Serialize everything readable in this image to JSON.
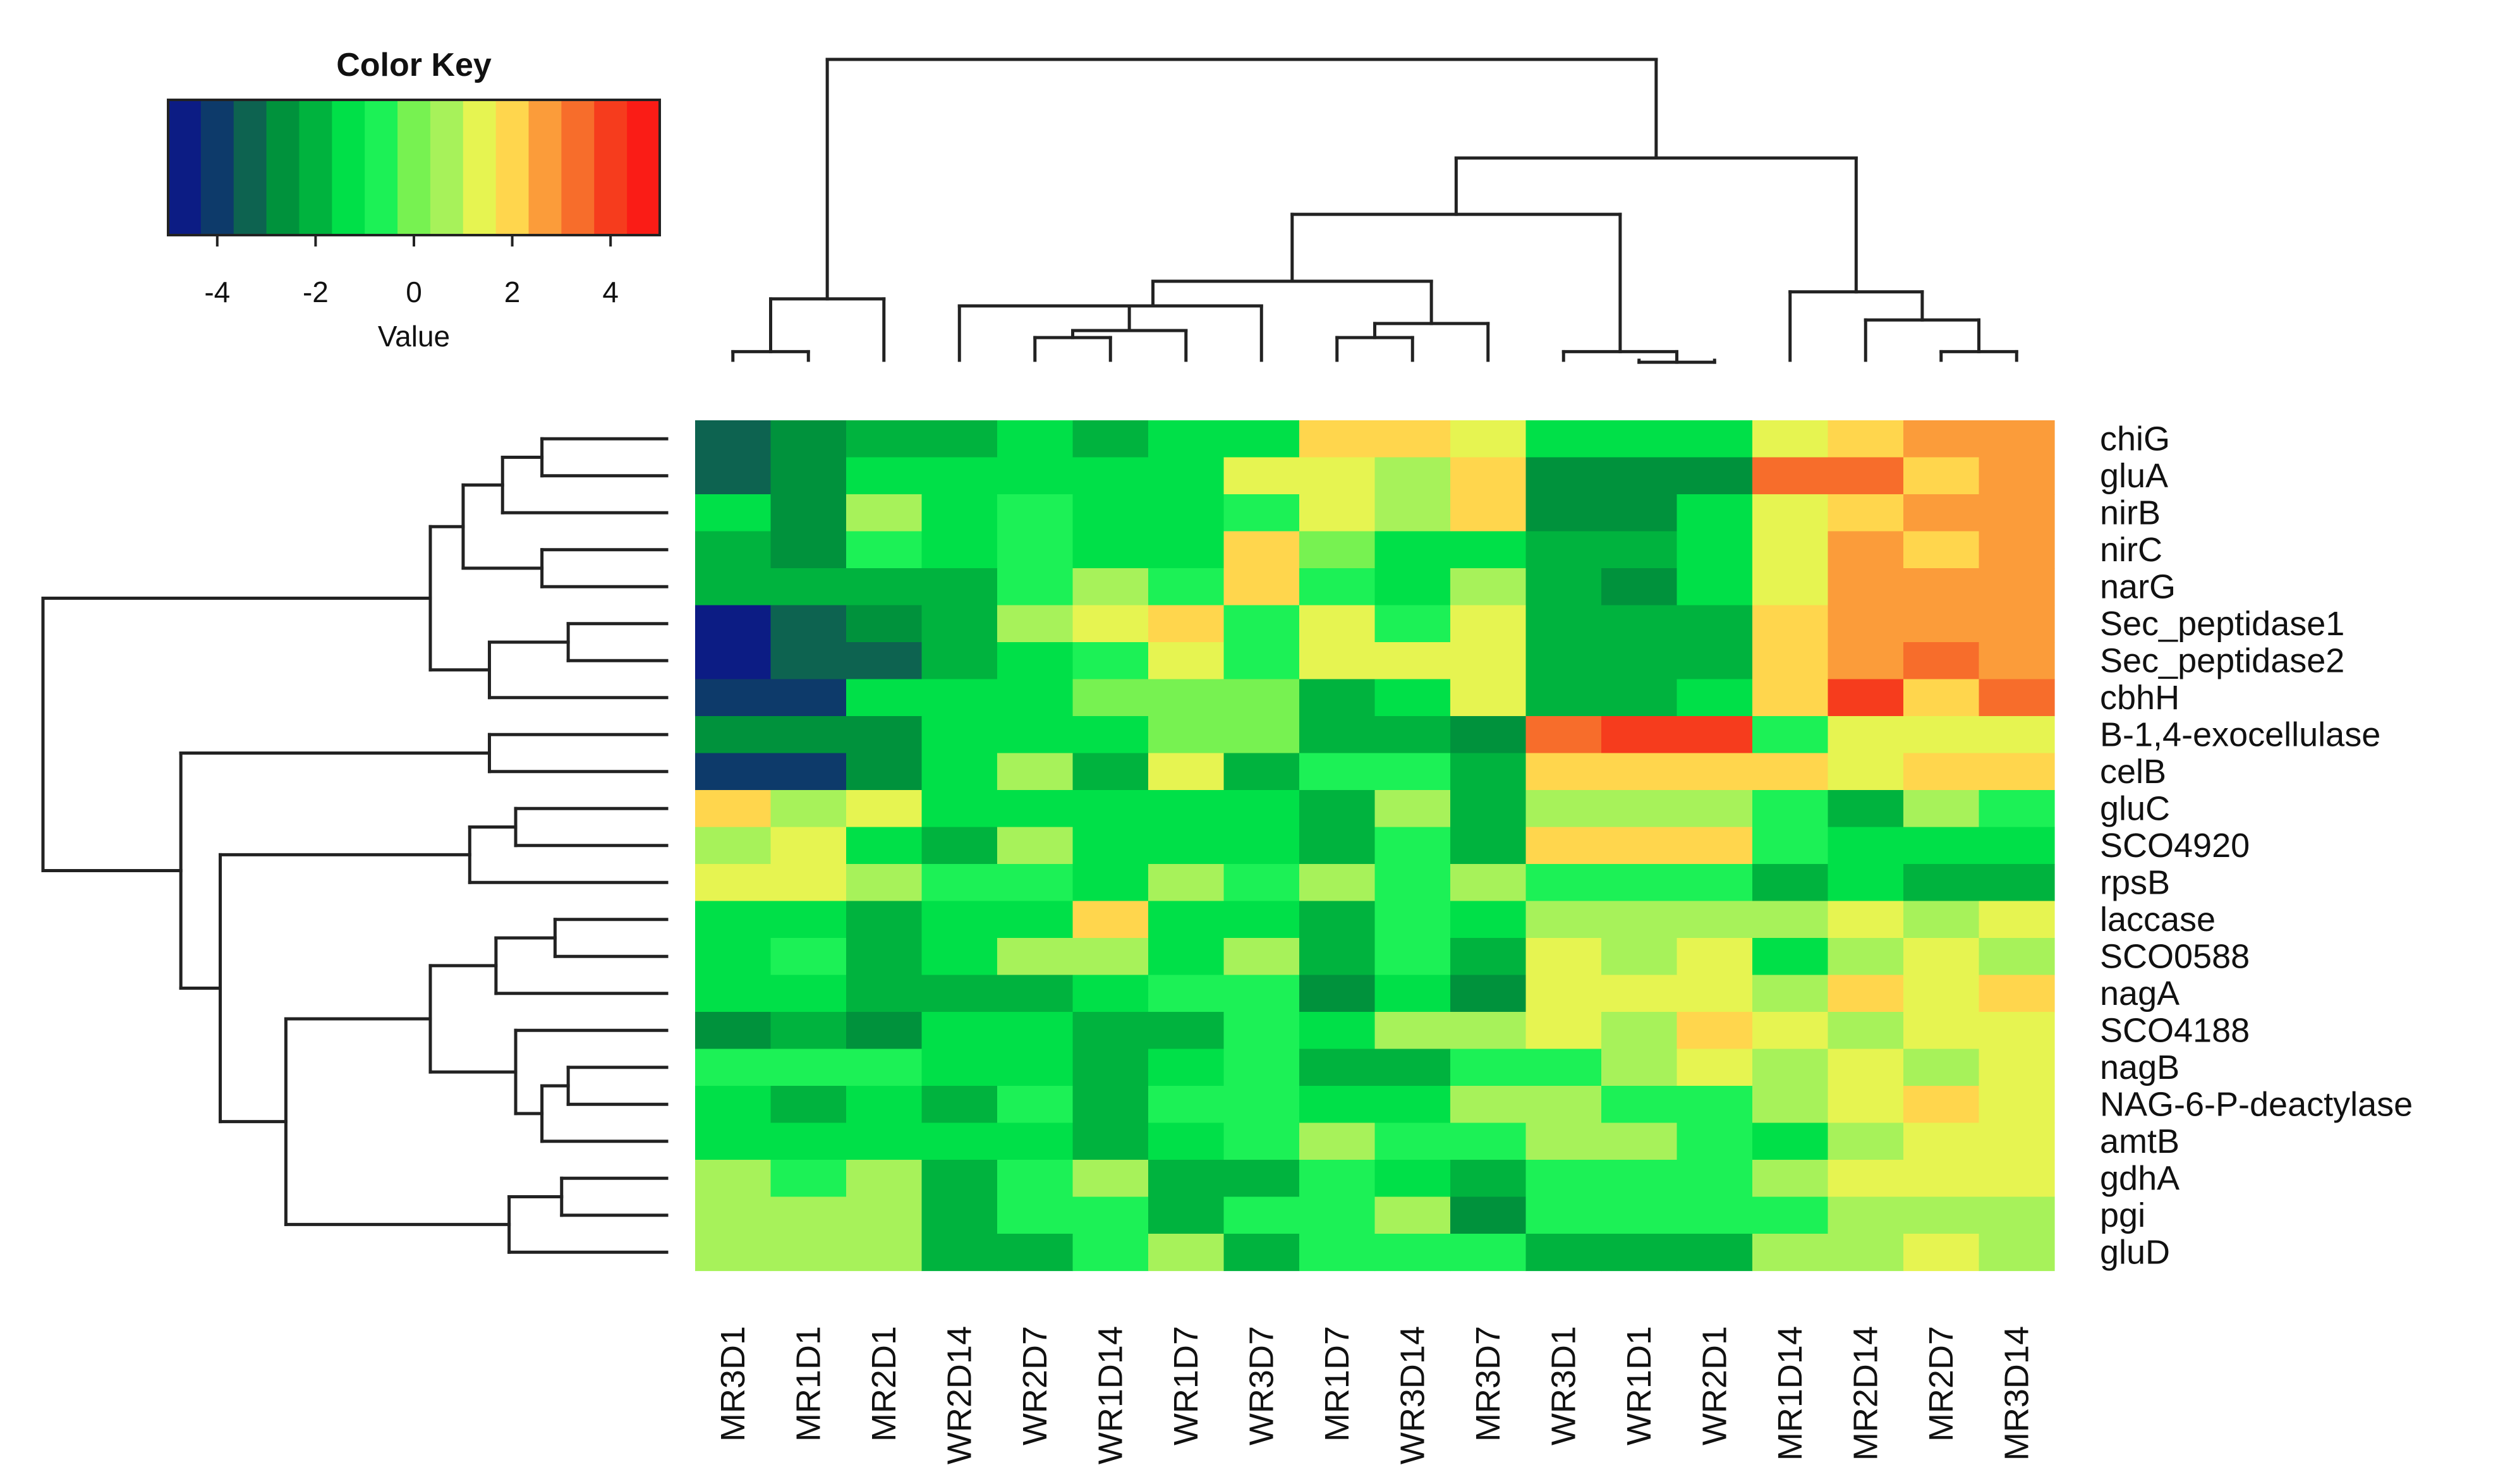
{
  "chart_data": {
    "type": "heatmap",
    "title": "",
    "columns": [
      "MR3D1",
      "MR1D1",
      "MR2D1",
      "WR2D14",
      "WR2D7",
      "WR1D14",
      "WR1D7",
      "WR3D7",
      "MR1D7",
      "WR3D14",
      "MR3D7",
      "WR3D1",
      "WR1D1",
      "WR2D1",
      "MR1D14",
      "MR2D14",
      "MR2D7",
      "MR3D14"
    ],
    "rows": [
      "chiG",
      "gluA",
      "nirB",
      "nirC",
      "narG",
      "Sec_peptidase1",
      "Sec_peptidase2",
      "cbhH",
      "B-1,4-exocellulase",
      "celB",
      "gluC",
      "SCO4920",
      "rpsB",
      "laccase",
      "SCO0588",
      "nagA",
      "SCO4188",
      "nagB",
      "NAG-6-P-deactylase",
      "amtB",
      "gdhA",
      "pgi",
      "gluD"
    ],
    "values": [
      [
        -3.3,
        -2.8,
        -2.2,
        -1.8,
        -1.1,
        -1.7,
        -1.6,
        -1.6,
        1.8,
        1.8,
        1.3,
        -1.6,
        -1.6,
        -1.6,
        1.3,
        1.8,
        2.8,
        2.9
      ],
      [
        -3.3,
        -2.8,
        -1.6,
        -1.5,
        -1.5,
        -1.4,
        -1.4,
        1.1,
        1.2,
        0.6,
        2.0,
        -2.5,
        -2.5,
        -2.7,
        3.0,
        3.6,
        1.8,
        2.9
      ],
      [
        -1.6,
        -2.8,
        0.4,
        -1.5,
        -0.5,
        -1.4,
        -1.4,
        -0.6,
        1.1,
        0.6,
        2.0,
        -2.5,
        -2.5,
        -1.6,
        1.2,
        2.0,
        2.8,
        2.9
      ],
      [
        -2.1,
        -2.8,
        -0.4,
        -1.5,
        -0.5,
        -1.2,
        -1.2,
        2.0,
        0.2,
        -1.2,
        -1.2,
        -1.8,
        -1.8,
        -1.5,
        1.2,
        2.8,
        1.8,
        2.9
      ],
      [
        -2.3,
        -2.3,
        -2.3,
        -1.8,
        -0.6,
        0.4,
        -0.6,
        2.0,
        -0.5,
        -1.2,
        0.4,
        -1.8,
        -2.4,
        -1.5,
        1.2,
        2.8,
        2.8,
        2.9
      ],
      [
        -4.6,
        -3.4,
        -2.7,
        -1.8,
        0.5,
        1.3,
        2.0,
        -0.6,
        1.2,
        -0.8,
        1.1,
        -2.2,
        -1.7,
        -1.7,
        1.9,
        2.8,
        2.8,
        2.9
      ],
      [
        -4.6,
        -3.4,
        -3.4,
        -1.8,
        -1.4,
        -0.6,
        1.3,
        -0.6,
        1.2,
        1.2,
        1.1,
        -2.2,
        -1.7,
        -1.7,
        1.9,
        2.8,
        3.6,
        2.9
      ],
      [
        -3.9,
        -3.9,
        -1.6,
        -1.6,
        -1.6,
        0.3,
        0.3,
        0.3,
        -1.7,
        -1.3,
        1.0,
        -1.7,
        -1.7,
        -1.4,
        1.9,
        4.3,
        2.0,
        3.6
      ],
      [
        -2.9,
        -2.9,
        -2.9,
        -1.6,
        -1.6,
        -1.6,
        0.3,
        0.3,
        -1.7,
        -1.7,
        -2.4,
        3.6,
        4.3,
        4.3,
        -0.5,
        1.2,
        1.2,
        1.2
      ],
      [
        -3.9,
        -3.9,
        -2.9,
        -1.4,
        0.4,
        -1.8,
        1.2,
        -1.7,
        -0.6,
        -0.6,
        -1.8,
        2.0,
        2.0,
        2.0,
        2.0,
        1.2,
        1.9,
        1.9
      ],
      [
        2.0,
        0.5,
        1.3,
        -1.4,
        -1.4,
        -1.4,
        -1.4,
        -1.4,
        -1.8,
        0.4,
        -1.8,
        0.5,
        0.5,
        0.5,
        -0.6,
        -1.8,
        0.5,
        -0.6
      ],
      [
        0.5,
        1.2,
        -1.5,
        -2.3,
        0.4,
        -1.4,
        -1.4,
        -1.4,
        -1.8,
        -0.6,
        -1.8,
        2.0,
        2.0,
        2.0,
        -0.6,
        -1.4,
        -1.4,
        -1.4
      ],
      [
        1.2,
        1.2,
        0.5,
        -0.6,
        -0.6,
        -1.4,
        0.4,
        -0.6,
        0.4,
        -0.6,
        0.4,
        -0.6,
        -0.6,
        -0.6,
        -1.8,
        -1.4,
        -1.8,
        -2.3
      ],
      [
        -1.4,
        -1.4,
        -1.8,
        -1.4,
        -1.4,
        2.0,
        -1.4,
        -1.4,
        -1.8,
        -0.6,
        -1.4,
        0.5,
        0.5,
        0.5,
        0.5,
        1.2,
        0.6,
        1.2
      ],
      [
        -1.4,
        -0.6,
        -1.8,
        -1.4,
        0.4,
        0.4,
        -1.4,
        0.4,
        -1.8,
        -0.6,
        -1.8,
        1.2,
        0.6,
        1.2,
        -1.6,
        0.6,
        1.2,
        0.6
      ],
      [
        -1.4,
        -1.4,
        -1.8,
        -1.8,
        -1.8,
        -1.6,
        -0.6,
        -0.6,
        -2.6,
        -1.6,
        -2.6,
        1.2,
        1.2,
        1.2,
        0.6,
        2.0,
        1.2,
        2.0
      ],
      [
        -2.4,
        -1.8,
        -2.4,
        -1.4,
        -1.4,
        -1.8,
        -1.8,
        -0.6,
        -1.6,
        0.5,
        0.5,
        1.2,
        0.6,
        2.0,
        1.2,
        0.6,
        1.2,
        1.2
      ],
      [
        -0.6,
        -0.6,
        -0.6,
        -1.4,
        -1.4,
        -1.8,
        -1.4,
        -0.6,
        -1.7,
        -1.7,
        -0.6,
        -0.6,
        0.5,
        1.2,
        0.6,
        1.2,
        0.6,
        1.2
      ],
      [
        -1.6,
        -1.8,
        -1.6,
        -1.7,
        -0.6,
        -1.8,
        -0.6,
        -0.6,
        -1.4,
        -1.4,
        0.5,
        0.5,
        -0.6,
        -0.6,
        0.6,
        1.2,
        2.0,
        1.2
      ],
      [
        -1.6,
        -1.6,
        -1.6,
        -1.6,
        -1.6,
        -1.8,
        -1.4,
        -0.6,
        0.4,
        -0.6,
        -0.6,
        0.5,
        0.5,
        -0.6,
        -1.5,
        0.6,
        1.2,
        1.2
      ],
      [
        0.5,
        -0.6,
        0.5,
        -1.8,
        -0.6,
        0.4,
        -1.8,
        -1.8,
        -0.6,
        -1.4,
        -1.8,
        -0.6,
        -0.6,
        -0.6,
        0.5,
        1.2,
        1.2,
        1.2
      ],
      [
        0.5,
        0.5,
        0.5,
        -1.8,
        -0.6,
        -0.6,
        -1.8,
        -0.6,
        -0.6,
        0.5,
        -2.4,
        -0.6,
        -0.6,
        -0.6,
        -0.6,
        0.6,
        0.6,
        0.6
      ],
      [
        0.5,
        0.5,
        0.5,
        -1.8,
        -1.8,
        -0.6,
        0.4,
        -1.8,
        -0.6,
        -0.6,
        -0.6,
        -1.8,
        -1.8,
        -1.8,
        0.5,
        0.6,
        1.2,
        0.6
      ]
    ],
    "color_key": {
      "title": "Color Key",
      "xlabel": "Value",
      "range": [
        -5,
        5
      ],
      "ticks": [
        "-4",
        "-2",
        "0",
        "2",
        "4"
      ],
      "tick_values": [
        -4,
        -2,
        0,
        2,
        4
      ],
      "colors": [
        "#0c1c84",
        "#0d3a6a",
        "#0d6350",
        "#00923c",
        "#00b33e",
        "#00e048",
        "#1cf156",
        "#77f251",
        "#a7f25a",
        "#e6f451",
        "#ffd64d",
        "#fb9c3a",
        "#f76d2b",
        "#f63c1d",
        "#fa1c16"
      ]
    },
    "col_dendrogram": {
      "leaf_order": [
        "MR3D1",
        "MR1D1",
        "MR2D1",
        "WR2D14",
        "WR2D7",
        "WR1D14",
        "WR1D7",
        "WR3D7",
        "MR1D7",
        "WR3D14",
        "MR3D7",
        "WR3D1",
        "WR1D1",
        "WR2D1",
        "MR1D14",
        "MR2D14",
        "MR2D7",
        "MR3D14"
      ],
      "merges": [
        {
          "a": 0,
          "b": 1,
          "height": 1.5
        },
        {
          "a": 18,
          "b": 2,
          "height": 3.0
        },
        {
          "a": 4,
          "b": 5,
          "height": 1.9
        },
        {
          "a": 20,
          "b": 6,
          "height": 2.1
        },
        {
          "a": 3,
          "b": 21,
          "height": 2.8
        },
        {
          "a": 22,
          "b": 7,
          "height": 2.8
        },
        {
          "a": 8,
          "b": 9,
          "height": 1.9
        },
        {
          "a": 24,
          "b": 10,
          "height": 2.3
        },
        {
          "a": 23,
          "b": 25,
          "height": 3.5
        },
        {
          "a": 12,
          "b": 13,
          "height": 1.2
        },
        {
          "a": 11,
          "b": 27,
          "height": 1.5
        },
        {
          "a": 16,
          "b": 17,
          "height": 1.5
        },
        {
          "a": 15,
          "b": 29,
          "height": 2.4
        },
        {
          "a": 14,
          "b": 30,
          "height": 3.2
        },
        {
          "a": 26,
          "b": 28,
          "height": 5.4
        },
        {
          "a": 32,
          "b": 31,
          "height": 7.0
        },
        {
          "a": 19,
          "b": 33,
          "height": 9.8
        }
      ]
    },
    "row_dendrogram": {
      "leaf_order": [
        "chiG",
        "gluA",
        "nirB",
        "nirC",
        "narG",
        "Sec_peptidase1",
        "Sec_peptidase2",
        "cbhH",
        "B-1,4-exocellulase",
        "celB",
        "gluC",
        "SCO4920",
        "rpsB",
        "laccase",
        "SCO0588",
        "nagA",
        "SCO4188",
        "nagB",
        "NAG-6-P-deactylase",
        "amtB",
        "gdhA",
        "pgi",
        "gluD"
      ],
      "merges": [
        {
          "a": 0,
          "b": 1,
          "height": 1.9
        },
        {
          "a": 23,
          "b": 2,
          "height": 2.5
        },
        {
          "a": 3,
          "b": 4,
          "height": 1.9
        },
        {
          "a": 24,
          "b": 25,
          "height": 3.1
        },
        {
          "a": 5,
          "b": 6,
          "height": 1.5
        },
        {
          "a": 27,
          "b": 7,
          "height": 2.7
        },
        {
          "a": 26,
          "b": 28,
          "height": 3.6
        },
        {
          "a": 8,
          "b": 9,
          "height": 2.7
        },
        {
          "a": 10,
          "b": 11,
          "height": 2.3
        },
        {
          "a": 31,
          "b": 12,
          "height": 3.0
        },
        {
          "a": 13,
          "b": 14,
          "height": 1.7
        },
        {
          "a": 33,
          "b": 15,
          "height": 2.6
        },
        {
          "a": 17,
          "b": 18,
          "height": 1.5
        },
        {
          "a": 35,
          "b": 19,
          "height": 1.9
        },
        {
          "a": 16,
          "b": 36,
          "height": 2.3
        },
        {
          "a": 34,
          "b": 37,
          "height": 3.6
        },
        {
          "a": 20,
          "b": 21,
          "height": 1.6
        },
        {
          "a": 39,
          "b": 22,
          "height": 2.4
        },
        {
          "a": 38,
          "b": 40,
          "height": 5.8
        },
        {
          "a": 32,
          "b": 41,
          "height": 6.8
        },
        {
          "a": 30,
          "b": 42,
          "height": 7.4
        },
        {
          "a": 29,
          "b": 43,
          "height": 9.5
        }
      ]
    }
  }
}
